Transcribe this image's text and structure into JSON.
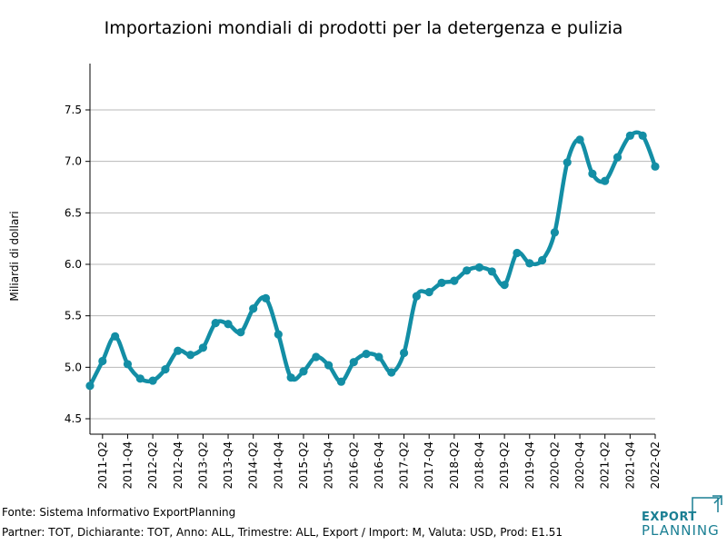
{
  "chart_data": {
    "type": "line",
    "title": "Importazioni mondiali di prodotti per la detergenza e pulizia",
    "xlabel": "",
    "ylabel": "Miliardi di dollari",
    "ylim": [
      4.35,
      7.95
    ],
    "yticks": [
      "4.5",
      "5.0",
      "5.5",
      "6.0",
      "6.5",
      "7.0",
      "7.5"
    ],
    "xtick_labels": [
      "2011-Q2",
      "2011-Q4",
      "2012-Q2",
      "2012-Q4",
      "2013-Q2",
      "2013-Q4",
      "2014-Q2",
      "2014-Q4",
      "2015-Q2",
      "2015-Q4",
      "2016-Q2",
      "2016-Q4",
      "2017-Q2",
      "2017-Q4",
      "2018-Q2",
      "2018-Q4",
      "2019-Q2",
      "2019-Q4",
      "2020-Q2",
      "2020-Q4",
      "2021-Q2",
      "2021-Q4",
      "2022-Q2"
    ],
    "grid": "horizontal",
    "series": [
      {
        "name": "",
        "color": "#138ea5",
        "x": [
          "2011-Q1",
          "2011-Q2",
          "2011-Q3",
          "2011-Q4",
          "2012-Q1",
          "2012-Q2",
          "2012-Q3",
          "2012-Q4",
          "2013-Q1",
          "2013-Q2",
          "2013-Q3",
          "2013-Q4",
          "2014-Q1",
          "2014-Q2",
          "2014-Q3",
          "2014-Q4",
          "2015-Q1",
          "2015-Q2",
          "2015-Q3",
          "2015-Q4",
          "2016-Q1",
          "2016-Q2",
          "2016-Q3",
          "2016-Q4",
          "2017-Q1",
          "2017-Q2",
          "2017-Q3",
          "2017-Q4",
          "2018-Q1",
          "2018-Q2",
          "2018-Q3",
          "2018-Q4",
          "2019-Q1",
          "2019-Q2",
          "2019-Q3",
          "2019-Q4",
          "2020-Q1",
          "2020-Q2",
          "2020-Q3",
          "2020-Q4",
          "2021-Q1",
          "2021-Q2",
          "2021-Q3",
          "2021-Q4",
          "2022-Q1",
          "2022-Q2"
        ],
        "values": [
          4.82,
          5.06,
          5.3,
          5.03,
          4.89,
          4.87,
          4.98,
          5.16,
          5.12,
          5.19,
          5.43,
          5.42,
          5.34,
          5.57,
          5.67,
          5.32,
          4.9,
          4.96,
          5.1,
          5.02,
          4.86,
          5.05,
          5.13,
          5.1,
          4.95,
          5.14,
          5.69,
          5.73,
          5.82,
          5.84,
          5.94,
          5.97,
          5.93,
          5.8,
          6.11,
          6.01,
          6.04,
          6.31,
          6.99,
          7.21,
          6.88,
          6.81,
          7.04,
          7.25,
          7.25,
          6.95
        ]
      }
    ]
  },
  "footer": {
    "source": "Fonte: Sistema Informativo ExportPlanning",
    "params": "Partner: TOT, Dichiarante: TOT, Anno: ALL, Trimestre: ALL, Export / Import: M, Valuta: USD, Prod: E1.51"
  },
  "logo": {
    "word1": "EXPORT",
    "word2": "PLANNING",
    "color": "#1a7f93"
  }
}
